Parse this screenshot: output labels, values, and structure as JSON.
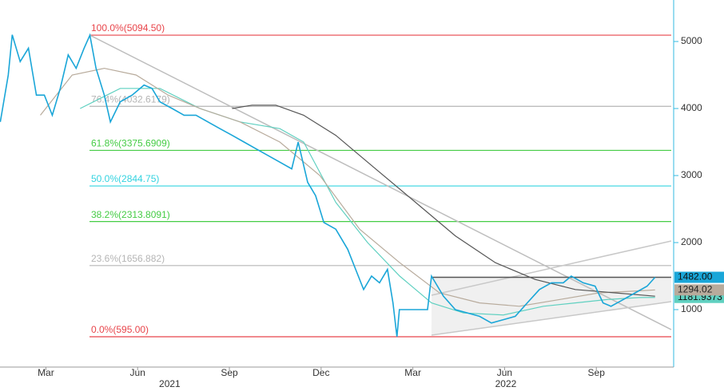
{
  "chart_data": {
    "type": "line",
    "xlim": [
      0.5,
      22.45
    ],
    "ylim": [
      143,
      5619
    ],
    "xticks": [
      {
        "value": 2,
        "label": "Mar"
      },
      {
        "value": 5,
        "label": "Jun"
      },
      {
        "value": 8,
        "label": "Sep"
      },
      {
        "value": 11,
        "label": "Dec"
      },
      {
        "value": 14,
        "label": "Mar"
      },
      {
        "value": 17,
        "label": "Jun"
      },
      {
        "value": 20,
        "label": "Sep"
      }
    ],
    "years": [
      {
        "value": 6.05,
        "label": "2021"
      },
      {
        "value": 17.04,
        "label": "2022"
      }
    ],
    "yticks": [
      1000,
      2000,
      3000,
      4000,
      5000
    ],
    "levels": [
      {
        "value": 5094.5,
        "label": "100.0%(5094.50)",
        "color": "#e8444a"
      },
      {
        "value": 4032.6,
        "label": "76.4%(4032.6179)",
        "color": "#b5b5b5"
      },
      {
        "value": 3375.69,
        "label": "61.8%(3375.6909)",
        "color": "#44cc44"
      },
      {
        "value": 2844.75,
        "label": "50.0%(2844.75)",
        "color": "#33d3e0"
      },
      {
        "value": 2313.81,
        "label": "38.2%(2313.8091)",
        "color": "#44cc44"
      },
      {
        "value": 1656.88,
        "label": "23.6%(1656.882)",
        "color": "#b5b5b5"
      },
      {
        "value": 595,
        "label": "0.0%(595.00)",
        "color": "#e8444a"
      }
    ],
    "trendlines": [
      {
        "x": [
          3.44,
          22.45
        ],
        "values": [
          5094.5,
          702
        ],
        "color": "#bdbdbd"
      },
      {
        "x": [
          14.61,
          22.45
        ],
        "values": [
          1214,
          2024
        ],
        "color": "#c8c8c8"
      },
      {
        "x": [
          14.61,
          22.45
        ],
        "values": [
          619,
          1119
        ],
        "color": "#c8c8c8"
      },
      {
        "x": [
          14.61,
          22.45
        ],
        "values": [
          1482,
          1482
        ],
        "color": "#555555"
      }
    ],
    "series": [
      {
        "color": "#1aa6d8",
        "last_label": "1482.00",
        "x": [
          0.51,
          0.77,
          0.9,
          1.16,
          1.43,
          1.69,
          1.95,
          2.21,
          2.47,
          2.73,
          2.99,
          3.25,
          3.44,
          3.64,
          3.91,
          4.11,
          4.43,
          4.82,
          5.21,
          5.47,
          5.73,
          6.13,
          6.52,
          6.91,
          7.3,
          7.69,
          8.09,
          8.48,
          8.87,
          9.26,
          9.65,
          10.04,
          10.25,
          10.56,
          10.82,
          11.09,
          11.48,
          11.87,
          12.13,
          12.39,
          12.65,
          12.91,
          13.17,
          13.35,
          13.48,
          13.56,
          14.09,
          14.48,
          14.61,
          15.0,
          15.39,
          15.79,
          16.18,
          16.57,
          16.96,
          17.35,
          17.74,
          18.14,
          18.53,
          18.92,
          19.18,
          19.57,
          19.96,
          20.22,
          20.48,
          20.88,
          21.27,
          21.66,
          21.92
        ],
        "values": [
          3800,
          4500,
          5100,
          4700,
          4900,
          4200,
          4200,
          3900,
          4300,
          4800,
          4600,
          4900,
          5094,
          4600,
          4200,
          3800,
          4100,
          4200,
          4350,
          4300,
          4100,
          4000,
          3900,
          3900,
          3800,
          3700,
          3600,
          3500,
          3400,
          3300,
          3200,
          3100,
          3500,
          2900,
          2700,
          2300,
          2200,
          1900,
          1600,
          1300,
          1500,
          1400,
          1600,
          1100,
          595,
          1000,
          1000,
          1000,
          1500,
          1200,
          1000,
          950,
          900,
          800,
          850,
          900,
          1100,
          1300,
          1400,
          1400,
          1500,
          1400,
          1350,
          1100,
          1050,
          1150,
          1250,
          1350,
          1482
        ]
      },
      {
        "color": "#555555",
        "x": [
          8.09,
          8.74,
          9.52,
          10.43,
          11.48,
          12.78,
          14.09,
          15.39,
          16.7,
          18.0,
          19.31,
          20.61,
          21.92
        ],
        "values": [
          4000,
          4050,
          4050,
          3900,
          3600,
          3100,
          2600,
          2100,
          1700,
          1450,
          1300,
          1250,
          1200
        ]
      },
      {
        "color": "#b8ab9c",
        "last_label": "1294.02",
        "x": [
          1.82,
          2.86,
          3.91,
          4.95,
          6.0,
          7.04,
          8.35,
          9.65,
          10.96,
          12.26,
          13.57,
          14.87,
          16.18,
          17.48,
          18.79,
          20.09,
          21.4,
          21.92
        ],
        "values": [
          3900,
          4500,
          4600,
          4500,
          4200,
          4000,
          3800,
          3500,
          3000,
          2200,
          1700,
          1250,
          1100,
          1050,
          1150,
          1250,
          1280,
          1294.02
        ]
      },
      {
        "color": "#5fd0c0",
        "last_label": "1181.9373",
        "x": [
          3.12,
          4.43,
          5.73,
          7.04,
          8.35,
          9.65,
          10.43,
          11.48,
          12.52,
          13.57,
          14.61,
          15.66,
          16.96,
          18.27,
          19.31,
          20.35,
          21.4,
          21.92
        ],
        "values": [
          4000,
          4300,
          4300,
          4000,
          3800,
          3700,
          3500,
          2600,
          2000,
          1500,
          1100,
          950,
          920,
          1050,
          1100,
          1150,
          1180,
          1181.9373
        ]
      }
    ]
  }
}
